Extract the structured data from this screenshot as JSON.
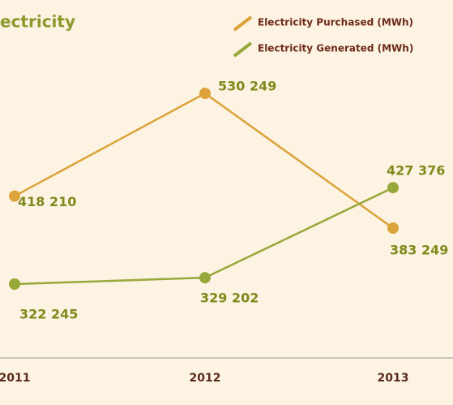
{
  "chart_data": {
    "type": "line",
    "title": "ectricity",
    "categories": [
      "2011",
      "2012",
      "2013"
    ],
    "series": [
      {
        "name": "Electricity Purchased (MWh)",
        "color": "#dba33a",
        "values": [
          418210,
          530249,
          383249
        ],
        "value_labels": [
          "418 210",
          "530 249",
          "383 249"
        ]
      },
      {
        "name": "Electricity Generated (MWh)",
        "color": "#97a83a",
        "values": [
          322245,
          329202,
          427376
        ],
        "value_labels": [
          "322 245",
          "329 202",
          "427 376"
        ]
      }
    ]
  }
}
